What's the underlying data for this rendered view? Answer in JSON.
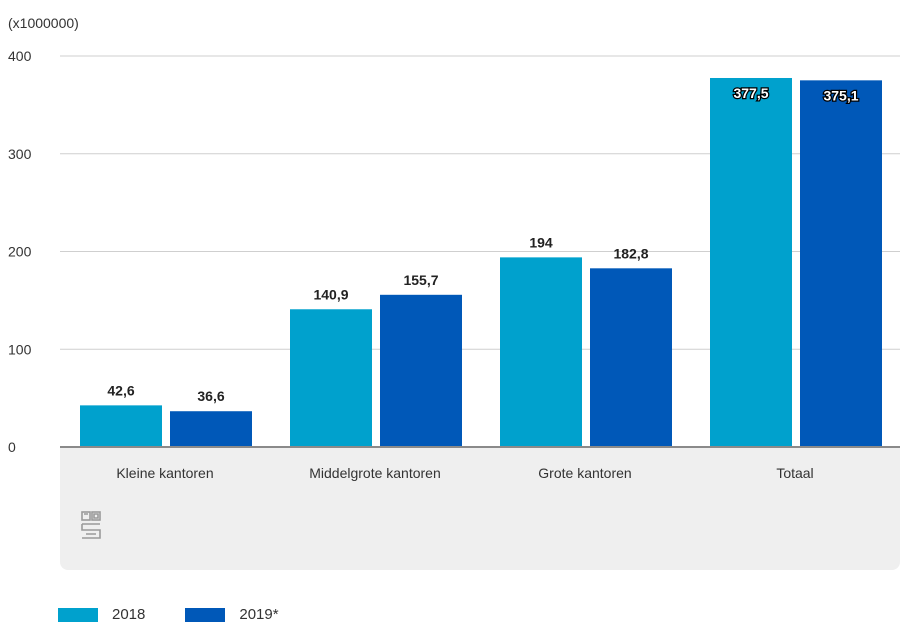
{
  "chart_data": {
    "type": "bar",
    "unit_label": "(x1000000)",
    "categories": [
      "Kleine kantoren",
      "Middelgrote kantoren",
      "Grote kantoren",
      "Totaal"
    ],
    "series": [
      {
        "name": "2018",
        "color": "#00a1cd",
        "values": [
          42.6,
          140.9,
          194,
          377.5
        ],
        "labels": [
          "42,6",
          "140,9",
          "194",
          "377,5"
        ]
      },
      {
        "name": "2019*",
        "color": "#0058b8",
        "values": [
          36.6,
          155.7,
          182.8,
          375.1
        ],
        "labels": [
          "36,6",
          "155,7",
          "182,8",
          "375,1"
        ]
      }
    ],
    "yticks": [
      "0",
      "100",
      "200",
      "300",
      "400"
    ],
    "ylim": [
      0,
      400
    ],
    "grid": true,
    "legend_position": "bottom-left"
  },
  "logo_icon": "cbs-logo-icon"
}
